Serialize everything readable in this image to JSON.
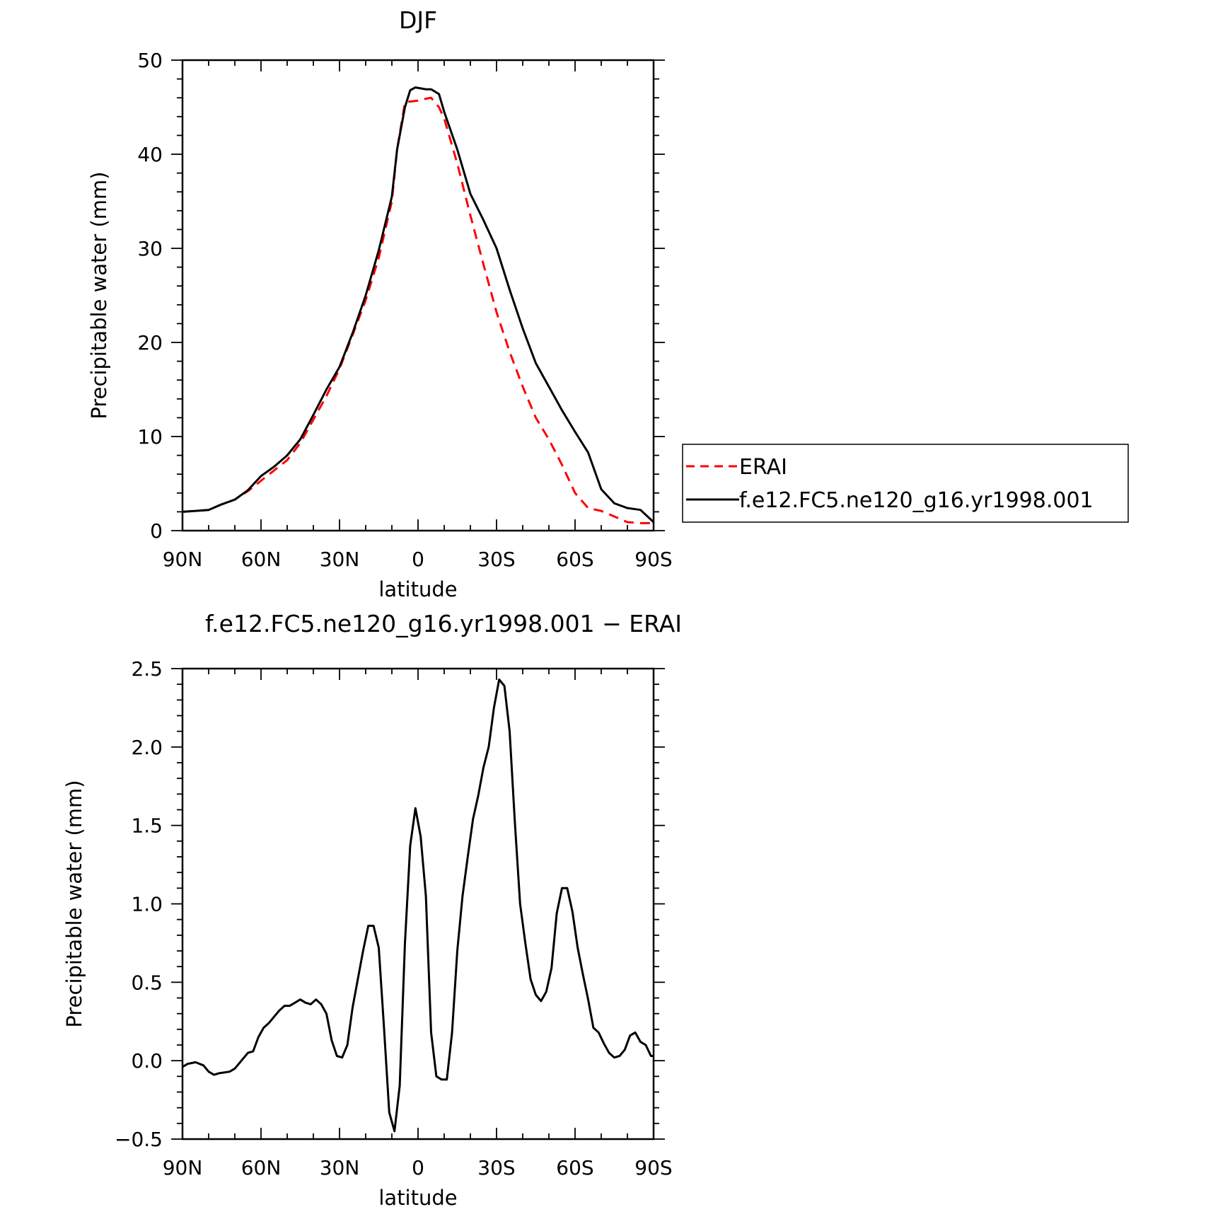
{
  "chart_data": [
    {
      "type": "line",
      "title": "DJF",
      "xlabel": "latitude",
      "ylabel": "Precipitable water (mm)",
      "xlim": [
        -90,
        90
      ],
      "ylim": [
        0,
        50
      ],
      "x_ticks": [
        -90,
        -60,
        -30,
        0,
        30,
        60,
        90
      ],
      "x_tick_labels": [
        "90N",
        "60N",
        "30N",
        "0",
        "30S",
        "60S",
        "90S"
      ],
      "y_ticks": [
        0,
        10,
        20,
        30,
        40,
        50
      ],
      "y_tick_labels": [
        "0",
        "10",
        "20",
        "30",
        "40",
        "50"
      ],
      "legend_position": "right",
      "series": [
        {
          "name": "ERAI",
          "color": "#ff0000",
          "dash": "dashed",
          "x": [
            -90,
            -85,
            -80,
            -75,
            -70,
            -65,
            -60,
            -55,
            -50,
            -45,
            -40,
            -35,
            -30,
            -25,
            -20,
            -15,
            -10,
            -8,
            -5,
            -3,
            0,
            3,
            5,
            8,
            10,
            15,
            20,
            25,
            30,
            35,
            40,
            45,
            50,
            55,
            60,
            65,
            70,
            75,
            80,
            85,
            90
          ],
          "y": [
            2.0,
            2.1,
            2.2,
            2.8,
            3.3,
            4.2,
            5.3,
            6.4,
            7.5,
            9.3,
            11.8,
            14.3,
            17.2,
            20.8,
            24.5,
            29.0,
            35.0,
            40.5,
            45.5,
            45.6,
            45.7,
            45.9,
            46.0,
            45.0,
            43.8,
            39.0,
            33.5,
            28.3,
            23.2,
            19.0,
            15.3,
            12.0,
            9.7,
            7.0,
            4.0,
            2.4,
            2.1,
            1.5,
            0.9,
            0.8,
            0.8
          ]
        },
        {
          "name": "f.e12.FC5.ne120_g16.yr1998.001",
          "color": "#000000",
          "dash": "solid",
          "x": [
            -90,
            -85,
            -80,
            -75,
            -70,
            -65,
            -60,
            -55,
            -50,
            -45,
            -40,
            -35,
            -30,
            -25,
            -20,
            -15,
            -10,
            -8,
            -5,
            -3,
            -1,
            1,
            3,
            5,
            8,
            10,
            15,
            20,
            25,
            30,
            35,
            40,
            45,
            50,
            55,
            60,
            65,
            70,
            75,
            80,
            85,
            90
          ],
          "y": [
            2.0,
            2.1,
            2.2,
            2.8,
            3.3,
            4.3,
            5.8,
            6.8,
            8.0,
            9.7,
            12.3,
            15.0,
            17.4,
            21.0,
            25.0,
            29.8,
            35.5,
            40.5,
            45.0,
            46.8,
            47.1,
            47.0,
            46.9,
            46.9,
            46.4,
            44.5,
            40.5,
            35.8,
            33.0,
            30.0,
            25.6,
            21.5,
            17.8,
            15.3,
            12.8,
            10.5,
            8.3,
            4.4,
            2.9,
            2.4,
            2.2,
            0.9
          ]
        }
      ]
    },
    {
      "type": "line",
      "title": "f.e12.FC5.ne120_g16.yr1998.001 − ERAI",
      "xlabel": "latitude",
      "ylabel": "Precipitable water (mm)",
      "xlim": [
        -90,
        90
      ],
      "ylim": [
        -0.5,
        2.5
      ],
      "x_ticks": [
        -90,
        -60,
        -30,
        0,
        30,
        60,
        90
      ],
      "x_tick_labels": [
        "90N",
        "60N",
        "30N",
        "0",
        "30S",
        "60S",
        "90S"
      ],
      "y_ticks": [
        -0.5,
        0.0,
        0.5,
        1.0,
        1.5,
        2.0,
        2.5
      ],
      "y_tick_labels": [
        "−0.5",
        "0.0",
        "0.5",
        "1.0",
        "1.5",
        "2.0",
        "2.5"
      ],
      "series": [
        {
          "color": "#000000",
          "dash": "solid",
          "x": [
            -90,
            -88,
            -85,
            -82,
            -80,
            -78,
            -76,
            -72,
            -70,
            -68,
            -65,
            -63,
            -61,
            -59,
            -57,
            -55,
            -53,
            -51,
            -49,
            -47,
            -45,
            -43,
            -41,
            -39,
            -37,
            -35,
            -33,
            -31,
            -29,
            -27,
            -25,
            -23,
            -21,
            -19,
            -17,
            -15,
            -13,
            -11,
            -9,
            -7,
            -5,
            -3,
            -1,
            1,
            3,
            5,
            7,
            9,
            11,
            13,
            15,
            17,
            19,
            21,
            23,
            25,
            27,
            29,
            31,
            33,
            35,
            37,
            39,
            41,
            43,
            45,
            47,
            49,
            51,
            53,
            55,
            57,
            59,
            61,
            63,
            65,
            67,
            69,
            71,
            73,
            75,
            77,
            79,
            81,
            83,
            85,
            87,
            89,
            90
          ],
          "y": [
            -0.04,
            -0.02,
            -0.01,
            -0.03,
            -0.07,
            -0.09,
            -0.08,
            -0.07,
            -0.05,
            -0.01,
            0.05,
            0.06,
            0.15,
            0.21,
            0.24,
            0.28,
            0.32,
            0.35,
            0.35,
            0.37,
            0.39,
            0.37,
            0.36,
            0.39,
            0.36,
            0.3,
            0.13,
            0.03,
            0.02,
            0.1,
            0.34,
            0.52,
            0.7,
            0.86,
            0.86,
            0.72,
            0.21,
            -0.33,
            -0.45,
            -0.16,
            0.75,
            1.37,
            1.61,
            1.43,
            1.05,
            0.18,
            -0.1,
            -0.12,
            -0.12,
            0.18,
            0.7,
            1.05,
            1.3,
            1.54,
            1.69,
            1.87,
            2.0,
            2.25,
            2.43,
            2.39,
            2.1,
            1.52,
            1.0,
            0.75,
            0.52,
            0.42,
            0.38,
            0.44,
            0.59,
            0.94,
            1.1,
            1.1,
            0.95,
            0.72,
            0.55,
            0.39,
            0.21,
            0.18,
            0.11,
            0.05,
            0.02,
            0.03,
            0.07,
            0.16,
            0.18,
            0.12,
            0.1,
            0.03,
            0.03
          ]
        }
      ]
    }
  ],
  "legend": {
    "entries": [
      "ERAI",
      "f.e12.FC5.ne120_g16.yr1998.001"
    ]
  }
}
